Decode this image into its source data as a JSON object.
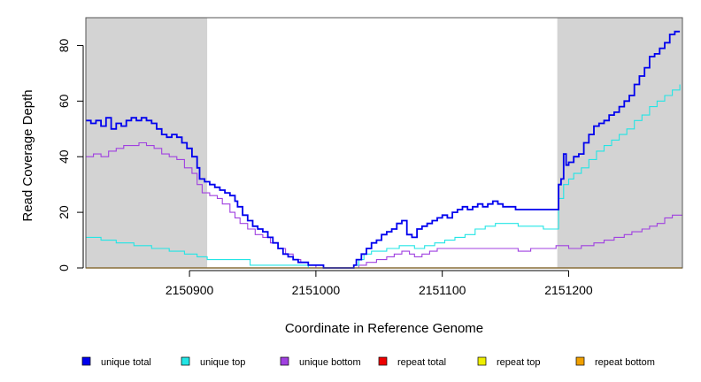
{
  "chart_data": {
    "type": "line",
    "xlabel": "Coordinate in Reference Genome",
    "ylabel": "Read Coverage Depth",
    "xlim": [
      2150818,
      2151290
    ],
    "ylim": [
      0,
      90
    ],
    "x_ticks": [
      2150900,
      2151000,
      2151100,
      2151200
    ],
    "x_tick_labels": [
      "2150900",
      "2151000",
      "2151100",
      "2151200"
    ],
    "y_ticks": [
      0,
      20,
      40,
      60,
      80
    ],
    "y_tick_labels": [
      "0",
      "20",
      "40",
      "60",
      "80"
    ],
    "shaded_regions": [
      {
        "x0": 2150818,
        "x1": 2150914
      },
      {
        "x0": 2151191,
        "x1": 2151290
      }
    ],
    "legend_position": "bottom",
    "series": [
      {
        "name": "unique total",
        "color": "#0000ee",
        "width": 1.8,
        "points": [
          [
            2150818,
            53
          ],
          [
            2150822,
            52
          ],
          [
            2150826,
            53
          ],
          [
            2150830,
            51
          ],
          [
            2150834,
            54
          ],
          [
            2150838,
            50
          ],
          [
            2150842,
            52
          ],
          [
            2150846,
            51
          ],
          [
            2150850,
            53
          ],
          [
            2150854,
            54
          ],
          [
            2150858,
            53
          ],
          [
            2150862,
            54
          ],
          [
            2150866,
            53
          ],
          [
            2150870,
            52
          ],
          [
            2150874,
            50
          ],
          [
            2150878,
            48
          ],
          [
            2150882,
            47
          ],
          [
            2150886,
            48
          ],
          [
            2150890,
            47
          ],
          [
            2150894,
            45
          ],
          [
            2150898,
            43
          ],
          [
            2150902,
            40
          ],
          [
            2150906,
            36
          ],
          [
            2150908,
            32
          ],
          [
            2150912,
            31
          ],
          [
            2150916,
            30
          ],
          [
            2150920,
            29
          ],
          [
            2150924,
            28
          ],
          [
            2150928,
            27
          ],
          [
            2150932,
            26
          ],
          [
            2150936,
            24
          ],
          [
            2150938,
            22
          ],
          [
            2150942,
            19
          ],
          [
            2150946,
            17
          ],
          [
            2150950,
            15
          ],
          [
            2150954,
            14
          ],
          [
            2150958,
            13
          ],
          [
            2150962,
            11
          ],
          [
            2150966,
            9
          ],
          [
            2150970,
            7
          ],
          [
            2150974,
            5
          ],
          [
            2150978,
            4
          ],
          [
            2150982,
            3
          ],
          [
            2150986,
            2
          ],
          [
            2150990,
            2
          ],
          [
            2150994,
            1
          ],
          [
            2151000,
            1
          ],
          [
            2151006,
            0
          ],
          [
            2151010,
            0
          ],
          [
            2151024,
            0
          ],
          [
            2151030,
            1
          ],
          [
            2151032,
            3
          ],
          [
            2151036,
            5
          ],
          [
            2151040,
            7
          ],
          [
            2151044,
            9
          ],
          [
            2151048,
            10
          ],
          [
            2151052,
            12
          ],
          [
            2151056,
            13
          ],
          [
            2151060,
            14
          ],
          [
            2151064,
            16
          ],
          [
            2151068,
            17
          ],
          [
            2151072,
            12
          ],
          [
            2151076,
            11
          ],
          [
            2151080,
            14
          ],
          [
            2151084,
            15
          ],
          [
            2151088,
            16
          ],
          [
            2151092,
            17
          ],
          [
            2151096,
            18
          ],
          [
            2151100,
            19
          ],
          [
            2151104,
            18
          ],
          [
            2151108,
            20
          ],
          [
            2151112,
            21
          ],
          [
            2151116,
            22
          ],
          [
            2151120,
            21
          ],
          [
            2151124,
            22
          ],
          [
            2151128,
            23
          ],
          [
            2151132,
            22
          ],
          [
            2151136,
            23
          ],
          [
            2151140,
            24
          ],
          [
            2151144,
            23
          ],
          [
            2151148,
            22
          ],
          [
            2151154,
            22
          ],
          [
            2151158,
            21
          ],
          [
            2151166,
            21
          ],
          [
            2151172,
            21
          ],
          [
            2151180,
            21
          ],
          [
            2151186,
            21
          ],
          [
            2151190,
            21
          ],
          [
            2151192,
            30
          ],
          [
            2151194,
            32
          ],
          [
            2151196,
            41
          ],
          [
            2151198,
            37
          ],
          [
            2151200,
            38
          ],
          [
            2151204,
            40
          ],
          [
            2151208,
            41
          ],
          [
            2151212,
            45
          ],
          [
            2151216,
            48
          ],
          [
            2151220,
            51
          ],
          [
            2151224,
            52
          ],
          [
            2151228,
            53
          ],
          [
            2151232,
            55
          ],
          [
            2151236,
            56
          ],
          [
            2151240,
            58
          ],
          [
            2151244,
            60
          ],
          [
            2151248,
            62
          ],
          [
            2151252,
            66
          ],
          [
            2151256,
            69
          ],
          [
            2151260,
            72
          ],
          [
            2151264,
            76
          ],
          [
            2151268,
            77
          ],
          [
            2151272,
            79
          ],
          [
            2151276,
            81
          ],
          [
            2151280,
            84
          ],
          [
            2151284,
            85
          ],
          [
            2151288,
            85
          ]
        ]
      },
      {
        "name": "unique top",
        "color": "#22e5e5",
        "width": 1.1,
        "points": [
          [
            2150818,
            11
          ],
          [
            2150830,
            10
          ],
          [
            2150842,
            9
          ],
          [
            2150856,
            8
          ],
          [
            2150870,
            7
          ],
          [
            2150884,
            6
          ],
          [
            2150896,
            5
          ],
          [
            2150906,
            4
          ],
          [
            2150914,
            3
          ],
          [
            2150928,
            3
          ],
          [
            2150948,
            1
          ],
          [
            2150978,
            1
          ],
          [
            2150994,
            0
          ],
          [
            2151024,
            0
          ],
          [
            2151030,
            1
          ],
          [
            2151034,
            3
          ],
          [
            2151038,
            5
          ],
          [
            2151044,
            6
          ],
          [
            2151056,
            7
          ],
          [
            2151066,
            8
          ],
          [
            2151078,
            7
          ],
          [
            2151086,
            8
          ],
          [
            2151094,
            9
          ],
          [
            2151102,
            10
          ],
          [
            2151110,
            11
          ],
          [
            2151118,
            12
          ],
          [
            2151126,
            14
          ],
          [
            2151134,
            15
          ],
          [
            2151142,
            16
          ],
          [
            2151150,
            16
          ],
          [
            2151160,
            15
          ],
          [
            2151170,
            15
          ],
          [
            2151180,
            14
          ],
          [
            2151188,
            14
          ],
          [
            2151192,
            25
          ],
          [
            2151196,
            30
          ],
          [
            2151200,
            32
          ],
          [
            2151204,
            34
          ],
          [
            2151210,
            36
          ],
          [
            2151216,
            39
          ],
          [
            2151222,
            42
          ],
          [
            2151228,
            44
          ],
          [
            2151234,
            46
          ],
          [
            2151240,
            48
          ],
          [
            2151246,
            50
          ],
          [
            2151252,
            53
          ],
          [
            2151258,
            55
          ],
          [
            2151264,
            58
          ],
          [
            2151270,
            60
          ],
          [
            2151276,
            62
          ],
          [
            2151282,
            64
          ],
          [
            2151288,
            66
          ]
        ]
      },
      {
        "name": "unique bottom",
        "color": "#a040e0",
        "width": 1.1,
        "points": [
          [
            2150818,
            40
          ],
          [
            2150824,
            41
          ],
          [
            2150830,
            40
          ],
          [
            2150836,
            42
          ],
          [
            2150842,
            43
          ],
          [
            2150848,
            44
          ],
          [
            2150854,
            44
          ],
          [
            2150860,
            45
          ],
          [
            2150866,
            44
          ],
          [
            2150872,
            43
          ],
          [
            2150878,
            41
          ],
          [
            2150884,
            40
          ],
          [
            2150890,
            39
          ],
          [
            2150896,
            36
          ],
          [
            2150902,
            34
          ],
          [
            2150906,
            30
          ],
          [
            2150910,
            27
          ],
          [
            2150916,
            26
          ],
          [
            2150922,
            25
          ],
          [
            2150926,
            23
          ],
          [
            2150932,
            20
          ],
          [
            2150936,
            18
          ],
          [
            2150940,
            16
          ],
          [
            2150946,
            14
          ],
          [
            2150952,
            12
          ],
          [
            2150958,
            11
          ],
          [
            2150964,
            9
          ],
          [
            2150970,
            7
          ],
          [
            2150976,
            5
          ],
          [
            2150982,
            3
          ],
          [
            2150988,
            2
          ],
          [
            2150994,
            1
          ],
          [
            2151000,
            0
          ],
          [
            2151030,
            0
          ],
          [
            2151034,
            1
          ],
          [
            2151040,
            2
          ],
          [
            2151048,
            3
          ],
          [
            2151056,
            4
          ],
          [
            2151062,
            5
          ],
          [
            2151068,
            6
          ],
          [
            2151074,
            5
          ],
          [
            2151078,
            4
          ],
          [
            2151084,
            5
          ],
          [
            2151090,
            6
          ],
          [
            2151096,
            7
          ],
          [
            2151130,
            7
          ],
          [
            2151150,
            7
          ],
          [
            2151160,
            6
          ],
          [
            2151170,
            7
          ],
          [
            2151180,
            7
          ],
          [
            2151190,
            8
          ],
          [
            2151200,
            7
          ],
          [
            2151210,
            8
          ],
          [
            2151220,
            9
          ],
          [
            2151228,
            10
          ],
          [
            2151236,
            11
          ],
          [
            2151244,
            12
          ],
          [
            2151250,
            13
          ],
          [
            2151258,
            14
          ],
          [
            2151264,
            15
          ],
          [
            2151270,
            16
          ],
          [
            2151276,
            18
          ],
          [
            2151282,
            19
          ],
          [
            2151290,
            19
          ]
        ]
      },
      {
        "name": "repeat total",
        "color": "#ee0000",
        "width": 1.1,
        "points": [
          [
            2150818,
            0
          ],
          [
            2151290,
            0
          ]
        ]
      },
      {
        "name": "repeat top",
        "color": "#eeee00",
        "width": 1.1,
        "points": [
          [
            2150818,
            0
          ],
          [
            2151290,
            0
          ]
        ]
      },
      {
        "name": "repeat bottom",
        "color": "#f0a000",
        "width": 1.4,
        "points": [
          [
            2150818,
            0
          ],
          [
            2151290,
            0
          ]
        ]
      }
    ]
  }
}
